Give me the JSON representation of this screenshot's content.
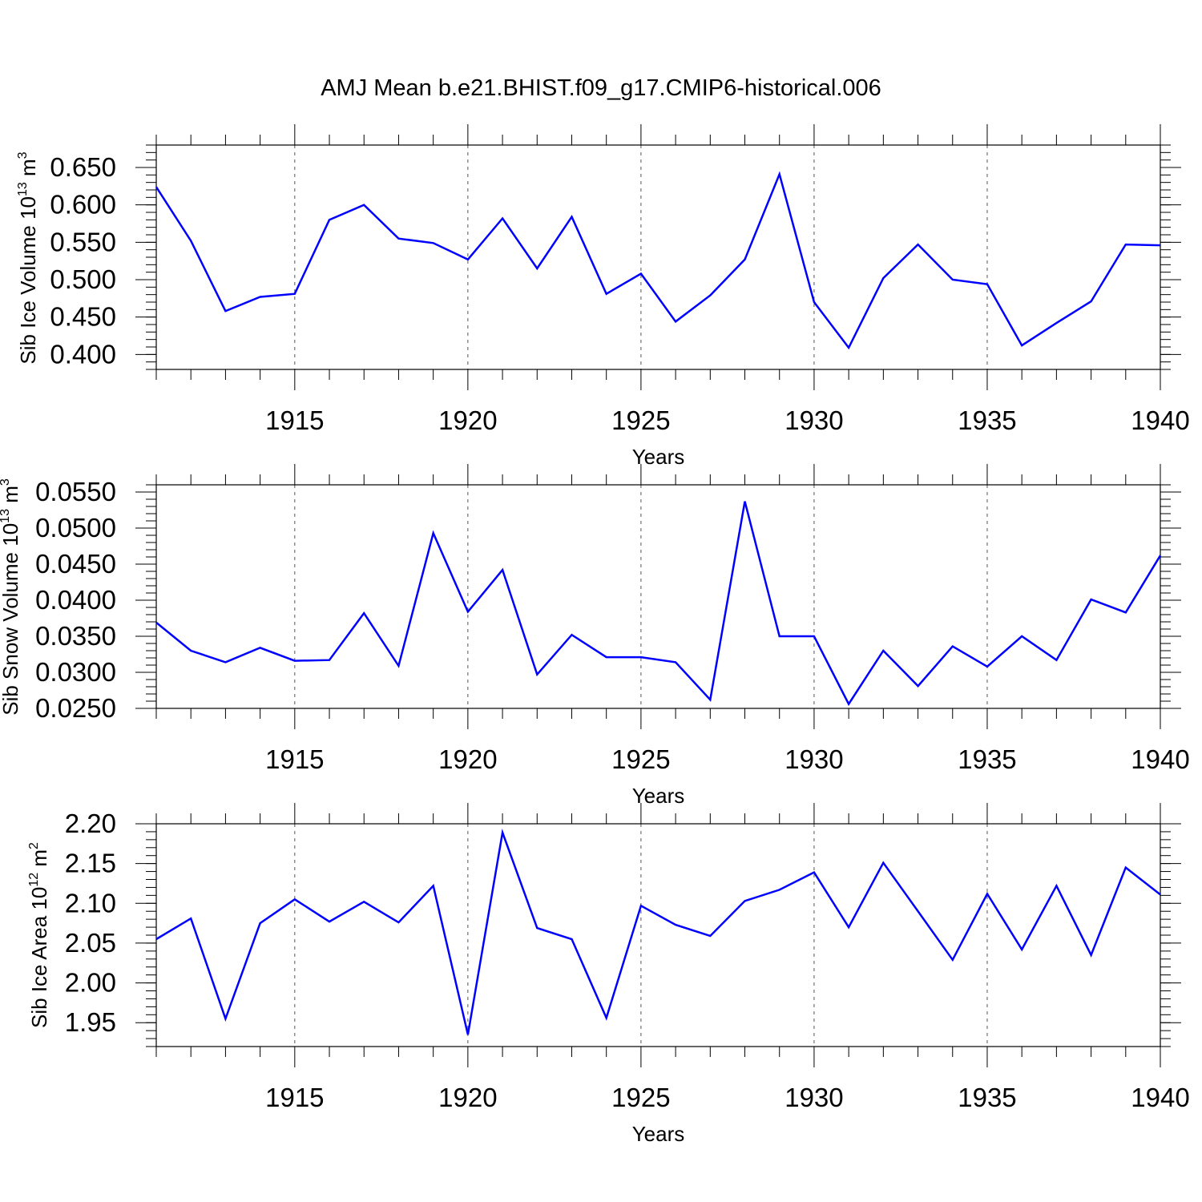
{
  "title": "AMJ Mean b.e21.BHIST.f09_g17.CMIP6-historical.006",
  "series_color": "#0000ff",
  "chart_data": [
    {
      "type": "line",
      "xlabel": "Years",
      "ylabel": "Sib Ice Volume 10",
      "ylabel_exp": "13",
      "ylabel_unit": " m",
      "ylabel_unit_exp": "3",
      "xlim": [
        1911,
        1940
      ],
      "ylim": [
        0.38,
        0.68
      ],
      "xticks": [
        "1915",
        "1920",
        "1925",
        "1930",
        "1935",
        "1940"
      ],
      "yticks": [
        "0.400",
        "0.450",
        "0.500",
        "0.550",
        "0.600",
        "0.650"
      ],
      "grid": "vertical dashed at labeled x ticks",
      "x": [
        1911,
        1912,
        1913,
        1914,
        1915,
        1916,
        1917,
        1918,
        1919,
        1920,
        1921,
        1922,
        1923,
        1924,
        1925,
        1926,
        1927,
        1928,
        1929,
        1930,
        1931,
        1932,
        1933,
        1934,
        1935,
        1936,
        1937,
        1938,
        1939,
        1940
      ],
      "y": [
        0.624,
        0.552,
        0.458,
        0.477,
        0.481,
        0.58,
        0.6,
        0.555,
        0.549,
        0.527,
        0.582,
        0.515,
        0.584,
        0.481,
        0.508,
        0.444,
        0.479,
        0.527,
        0.641,
        0.47,
        0.409,
        0.502,
        0.547,
        0.5,
        0.494,
        0.412,
        0.442,
        0.471,
        0.547,
        0.546
      ]
    },
    {
      "type": "line",
      "xlabel": "Years",
      "ylabel": "Sib Snow Volume 10",
      "ylabel_exp": "13",
      "ylabel_unit": " m",
      "ylabel_unit_exp": "3",
      "xlim": [
        1911,
        1940
      ],
      "ylim": [
        0.025,
        0.056
      ],
      "xticks": [
        "1915",
        "1920",
        "1925",
        "1930",
        "1935",
        "1940"
      ],
      "yticks": [
        "0.0250",
        "0.0300",
        "0.0350",
        "0.0400",
        "0.0450",
        "0.0500",
        "0.0550"
      ],
      "grid": "vertical dashed at labeled x ticks",
      "x": [
        1911,
        1912,
        1913,
        1914,
        1915,
        1916,
        1917,
        1918,
        1919,
        1920,
        1921,
        1922,
        1923,
        1924,
        1925,
        1926,
        1927,
        1928,
        1929,
        1930,
        1931,
        1932,
        1933,
        1934,
        1935,
        1936,
        1937,
        1938,
        1939,
        1940
      ],
      "y": [
        0.0369,
        0.033,
        0.0314,
        0.0334,
        0.0316,
        0.0317,
        0.0382,
        0.0309,
        0.0493,
        0.0384,
        0.0442,
        0.0297,
        0.0352,
        0.0321,
        0.0321,
        0.0314,
        0.0262,
        0.0537,
        0.035,
        0.035,
        0.0256,
        0.033,
        0.0281,
        0.0336,
        0.0308,
        0.035,
        0.0317,
        0.0401,
        0.0383,
        0.0462
      ]
    },
    {
      "type": "line",
      "xlabel": "Years",
      "ylabel": "Sib Ice Area 10",
      "ylabel_exp": "12",
      "ylabel_unit": " m",
      "ylabel_unit_exp": "2",
      "xlim": [
        1911,
        1940
      ],
      "ylim": [
        1.92,
        2.2
      ],
      "xticks": [
        "1915",
        "1920",
        "1925",
        "1930",
        "1935",
        "1940"
      ],
      "yticks": [
        "1.95",
        "2.00",
        "2.05",
        "2.10",
        "2.15",
        "2.20"
      ],
      "grid": "vertical dashed at labeled x ticks",
      "x": [
        1911,
        1912,
        1913,
        1914,
        1915,
        1916,
        1917,
        1918,
        1919,
        1920,
        1921,
        1922,
        1923,
        1924,
        1925,
        1926,
        1927,
        1928,
        1929,
        1930,
        1931,
        1932,
        1933,
        1934,
        1935,
        1936,
        1937,
        1938,
        1939,
        1940
      ],
      "y": [
        2.055,
        2.081,
        1.955,
        2.075,
        2.105,
        2.077,
        2.102,
        2.076,
        2.122,
        1.935,
        2.189,
        2.069,
        2.055,
        1.956,
        2.097,
        2.073,
        2.059,
        2.103,
        2.117,
        2.139,
        2.07,
        2.151,
        2.09,
        2.029,
        2.112,
        2.042,
        2.122,
        2.035,
        2.145,
        2.111
      ]
    }
  ]
}
